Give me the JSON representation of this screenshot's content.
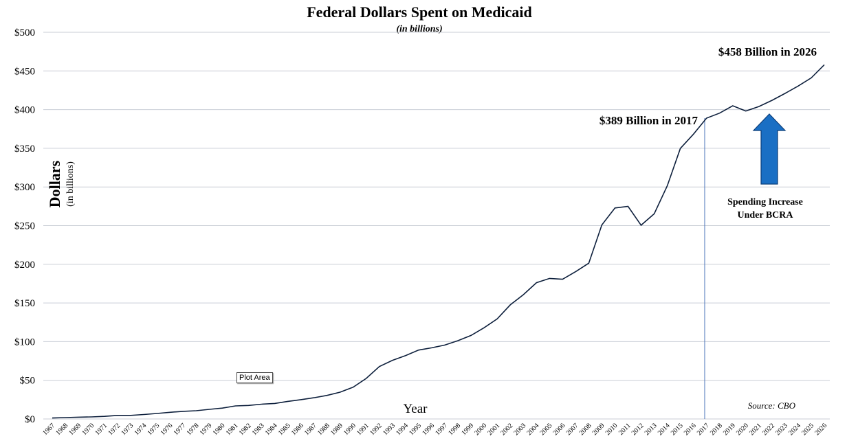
{
  "chart_data": {
    "type": "line",
    "title": "Federal Dollars Spent on Medicaid",
    "subtitle": "(in billions)",
    "ylabel": "Dollars",
    "ylabel_sub": "(in billions)",
    "xlabel": "Year",
    "ylim": [
      0,
      500
    ],
    "y_ticks": [
      0,
      50,
      100,
      150,
      200,
      250,
      300,
      350,
      400,
      450,
      500
    ],
    "y_tick_labels": [
      "$0",
      "$50",
      "$100",
      "$150",
      "$200",
      "$250",
      "$300",
      "$350",
      "$400",
      "$450",
      "$500"
    ],
    "grid": true,
    "x": [
      "1967",
      "1968",
      "1969",
      "1970",
      "1971",
      "1972",
      "1973",
      "1974",
      "1975",
      "1976",
      "1977",
      "1978",
      "1979",
      "1980",
      "1981",
      "1982",
      "1983",
      "1984",
      "1985",
      "1986",
      "1987",
      "1988",
      "1989",
      "1990",
      "1991",
      "1992",
      "1993",
      "1994",
      "1995",
      "1996",
      "1997",
      "1998",
      "1999",
      "2000",
      "2001",
      "2002",
      "2003",
      "2004",
      "2005",
      "2006",
      "2007",
      "2008",
      "2009",
      "2010",
      "2011",
      "2012",
      "2013",
      "2014",
      "2015",
      "2016",
      "2017",
      "2018",
      "2019",
      "2020",
      "2021",
      "2022",
      "2023",
      "2024",
      "2025",
      "2026"
    ],
    "series": [
      {
        "values": [
          1.2,
          1.8,
          2.3,
          2.7,
          3.4,
          4.6,
          4.6,
          5.8,
          7.1,
          8.6,
          9.9,
          10.7,
          12.4,
          14,
          16.9,
          17.5,
          19.1,
          20.1,
          22.7,
          25,
          27.4,
          30.5,
          34.6,
          41.1,
          52.5,
          67.8,
          75.8,
          82,
          89.1,
          92,
          95.6,
          101.2,
          108,
          117.9,
          129.4,
          147.5,
          160.7,
          176.2,
          181.7,
          180.6,
          190.6,
          201.4,
          250.9,
          272.8,
          274.9,
          250.5,
          265.4,
          301.5,
          349.8,
          368.3,
          389,
          395.5,
          405,
          398.2,
          404,
          412,
          421,
          430.5,
          441,
          458
        ]
      }
    ],
    "annotations": {
      "end_label": "$458 Billion in 2026",
      "mid_label": "$389 Billion in 2017",
      "increase_label_line1": "Spending Increase",
      "increase_label_line2": "Under BCRA",
      "source": "Source: CBO",
      "plot_area_tooltip": "Plot Area"
    },
    "arrow_color": "#1a6fc4"
  }
}
